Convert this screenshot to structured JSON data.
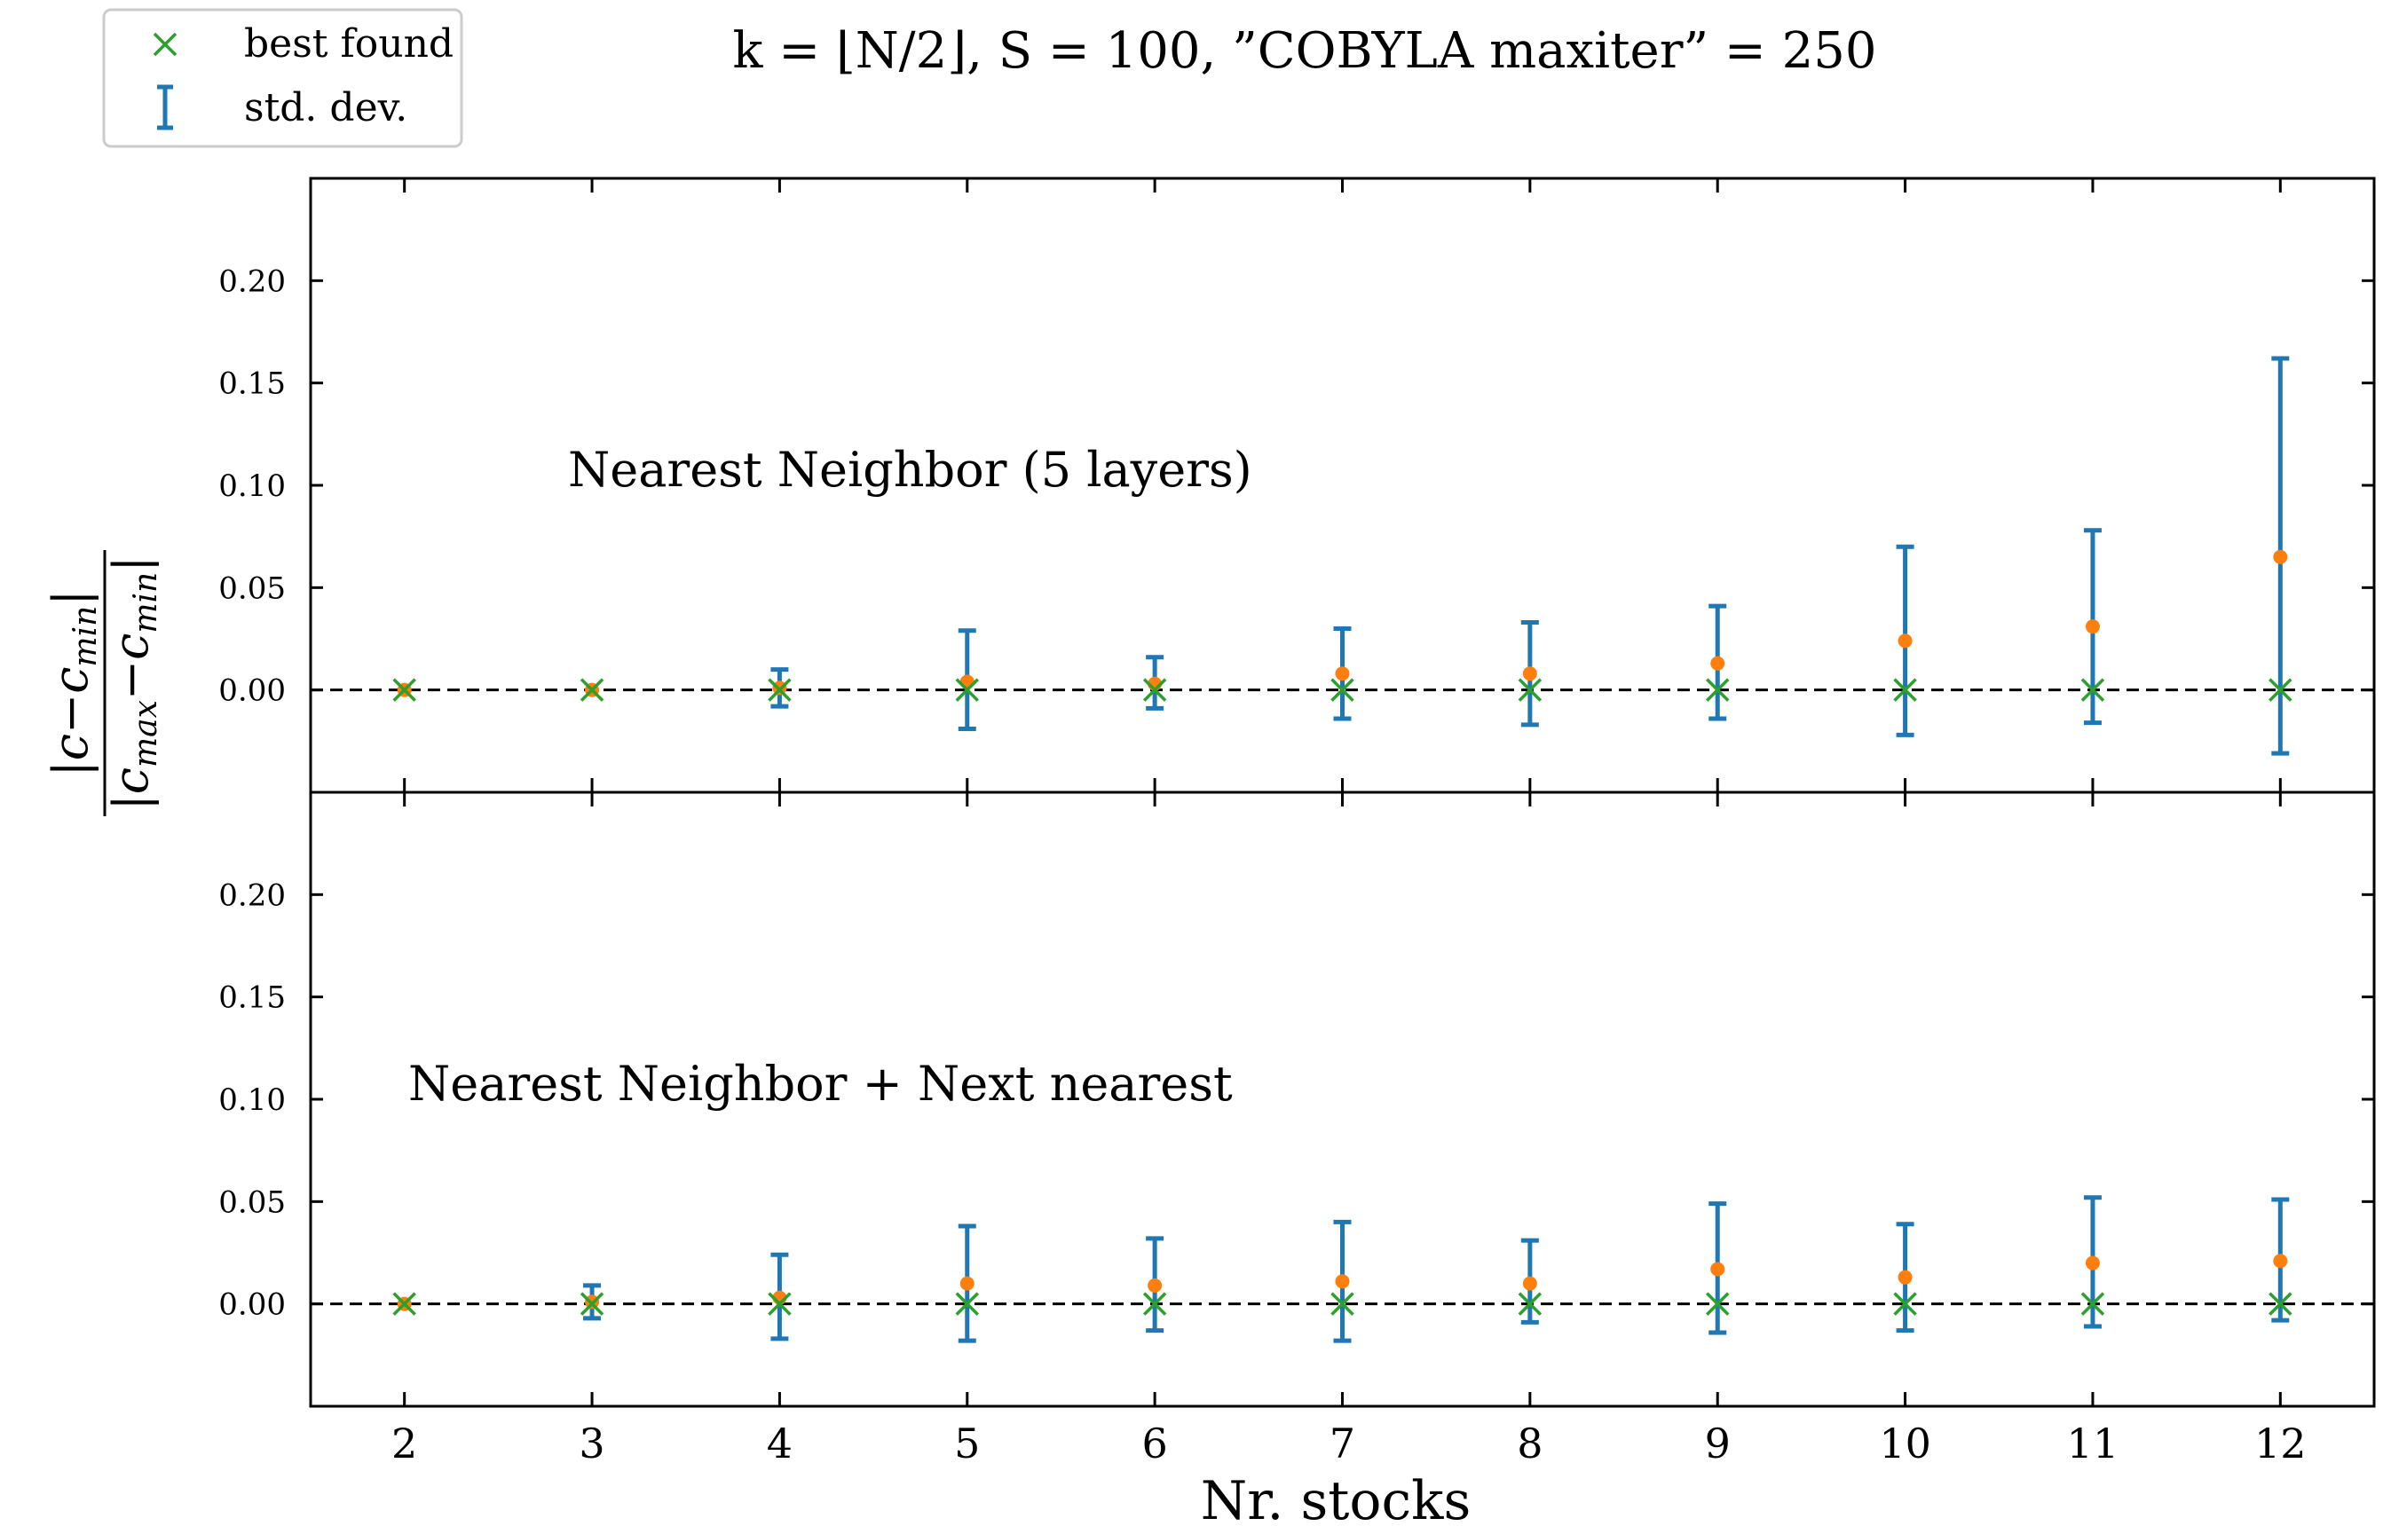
{
  "title": "k = ⌊N/2⌋,    S = 100,    ”COBYLA maxiter” = 250",
  "legend": {
    "best_label": "best found",
    "std_label": "std. dev."
  },
  "colors": {
    "errorbar": "#1f77b4",
    "mean": "#ff7f0e",
    "best": "#2ca02c",
    "axes": "#000000"
  },
  "chart_data": [
    {
      "type": "scatter",
      "panel_label": "Nearest Neighbor (5 layers)",
      "xlabel": "",
      "ylabel": "|c−c_min| / |c_max−c_min|",
      "ylim": [
        -0.05,
        0.25
      ],
      "yticks": [
        0.0,
        0.05,
        0.1,
        0.15,
        0.2
      ],
      "ytick_labels": [
        "0.00",
        "0.05",
        "0.10",
        "0.15",
        "0.20"
      ],
      "grid": false,
      "reference_line": 0.0,
      "x": [
        2,
        3,
        4,
        5,
        6,
        7,
        8,
        9,
        10,
        11,
        12
      ],
      "series": [
        {
          "name": "mean",
          "values": [
            0.0,
            0.0,
            0.001,
            0.004,
            0.003,
            0.008,
            0.008,
            0.013,
            0.024,
            0.031,
            0.065
          ]
        },
        {
          "name": "std. dev.",
          "lower": [
            0.0,
            0.0,
            -0.008,
            -0.019,
            -0.009,
            -0.014,
            -0.017,
            -0.014,
            -0.022,
            -0.016,
            -0.031
          ],
          "upper": [
            0.0,
            0.0,
            0.01,
            0.029,
            0.016,
            0.03,
            0.033,
            0.041,
            0.07,
            0.078,
            0.162
          ]
        },
        {
          "name": "best found",
          "values": [
            0,
            0,
            0,
            0,
            0,
            0,
            0,
            0,
            0,
            0,
            0
          ]
        }
      ]
    },
    {
      "type": "scatter",
      "panel_label": "Nearest Neighbor + Next nearest",
      "xlabel": "Nr. stocks",
      "ylabel": "|c−c_min| / |c_max−c_min|",
      "ylim": [
        -0.05,
        0.25
      ],
      "yticks": [
        0.0,
        0.05,
        0.1,
        0.15,
        0.2
      ],
      "ytick_labels": [
        "0.00",
        "0.05",
        "0.10",
        "0.15",
        "0.20"
      ],
      "xticks": [
        2,
        3,
        4,
        5,
        6,
        7,
        8,
        9,
        10,
        11,
        12
      ],
      "xtick_labels": [
        "2",
        "3",
        "4",
        "5",
        "6",
        "7",
        "8",
        "9",
        "10",
        "11",
        "12"
      ],
      "grid": false,
      "reference_line": 0.0,
      "x": [
        2,
        3,
        4,
        5,
        6,
        7,
        8,
        9,
        10,
        11,
        12
      ],
      "series": [
        {
          "name": "mean",
          "values": [
            0.0,
            0.001,
            0.003,
            0.01,
            0.009,
            0.011,
            0.01,
            0.017,
            0.013,
            0.02,
            0.021
          ]
        },
        {
          "name": "std. dev.",
          "lower": [
            0.0,
            -0.007,
            -0.017,
            -0.018,
            -0.013,
            -0.018,
            -0.009,
            -0.014,
            -0.013,
            -0.011,
            -0.008
          ],
          "upper": [
            0.0,
            0.009,
            0.024,
            0.038,
            0.032,
            0.04,
            0.031,
            0.049,
            0.039,
            0.052,
            0.051
          ]
        },
        {
          "name": "best found",
          "values": [
            0,
            0,
            0,
            0,
            0,
            0,
            0,
            0,
            0,
            0,
            0
          ]
        }
      ]
    }
  ]
}
